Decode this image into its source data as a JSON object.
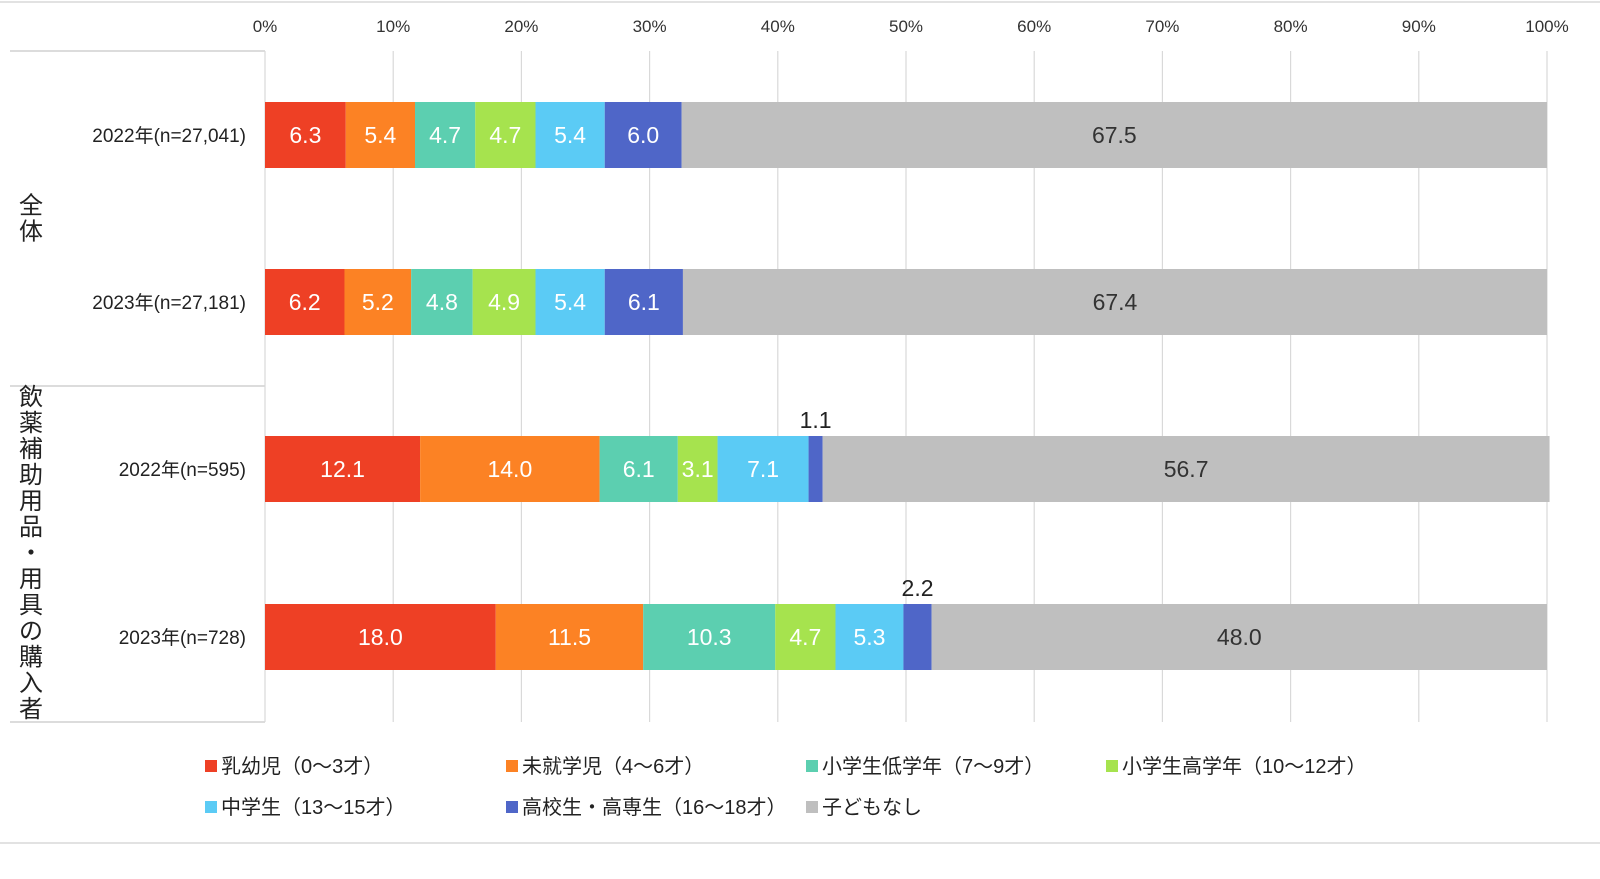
{
  "chart_data": {
    "type": "bar",
    "orientation": "horizontal",
    "stacked": true,
    "xlim": [
      0,
      100
    ],
    "x_ticks": [
      "0%",
      "10%",
      "20%",
      "30%",
      "40%",
      "50%",
      "60%",
      "70%",
      "80%",
      "90%",
      "100%"
    ],
    "grid": true,
    "legend_position": "bottom",
    "groups": [
      {
        "label": "全体",
        "rows": [
          0,
          1
        ]
      },
      {
        "label": "飲薬補助用品・用具の購入者",
        "rows": [
          2,
          3
        ]
      }
    ],
    "categories": [
      "2022年(n=27,041)",
      "2023年(n=27,181)",
      "2022年(n=595)",
      "2023年(n=728)"
    ],
    "series": [
      {
        "name": "乳幼児（0～3才）",
        "color": "#ee4025",
        "values": [
          6.3,
          6.2,
          12.1,
          18.0
        ],
        "labels": [
          "6.3",
          "6.2",
          "12.1",
          "18.0"
        ]
      },
      {
        "name": "未就学児（4～6才）",
        "color": "#fc8224",
        "values": [
          5.4,
          5.2,
          14.0,
          11.5
        ],
        "labels": [
          "5.4",
          "5.2",
          "14.0",
          "11.5"
        ]
      },
      {
        "name": "小学生低学年（7～9才）",
        "color": "#5ccfb0",
        "values": [
          4.7,
          4.8,
          6.1,
          10.3
        ],
        "labels": [
          "4.7",
          "4.8",
          "6.1",
          "10.3"
        ]
      },
      {
        "name": "小学生高学年（10～12才）",
        "color": "#a6e34e",
        "values": [
          4.7,
          4.9,
          3.1,
          4.7
        ],
        "labels": [
          "4.7",
          "4.9",
          "3.1",
          "4.7"
        ]
      },
      {
        "name": "中学生（13～15才）",
        "color": "#5bcbf5",
        "values": [
          5.4,
          5.4,
          7.1,
          5.3
        ],
        "labels": [
          "5.4",
          "5.4",
          "7.1",
          "5.3"
        ]
      },
      {
        "name": "高校生・高専生（16～18才）",
        "color": "#4f66c8",
        "values": [
          6.0,
          6.1,
          1.1,
          2.2
        ],
        "labels": [
          "6.0",
          "6.1",
          "1.1",
          "2.2"
        ]
      },
      {
        "name": "子どもなし",
        "color": "#bfbfbf",
        "values": [
          67.5,
          67.4,
          56.7,
          48.0
        ],
        "labels": [
          "67.5",
          "67.4",
          "56.7",
          "48.0"
        ]
      }
    ]
  }
}
